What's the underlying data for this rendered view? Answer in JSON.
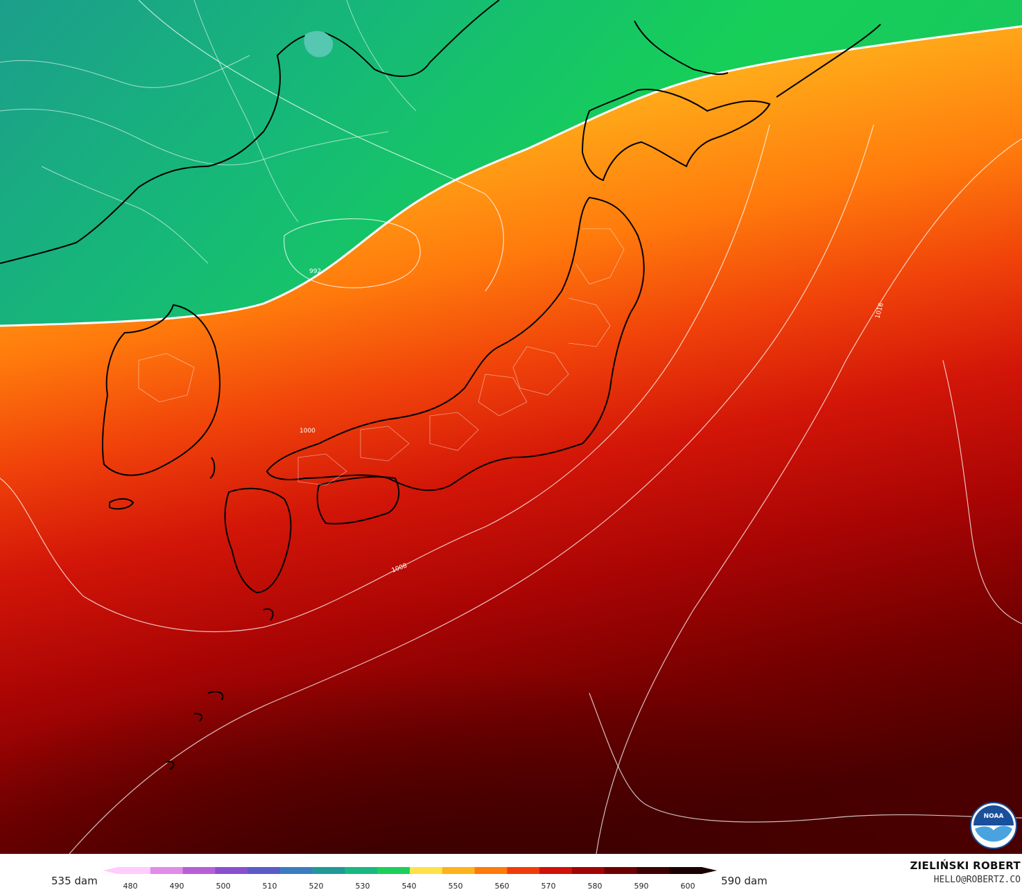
{
  "legend": {
    "left_label": "535 dam",
    "right_label": "590 dam",
    "ticks": [
      "480",
      "490",
      "500",
      "510",
      "520",
      "530",
      "540",
      "550",
      "560",
      "570",
      "580",
      "590",
      "600"
    ],
    "colors": [
      "#ffccff",
      "#e08ce8",
      "#b85fd8",
      "#8a4fd0",
      "#5a5ac8",
      "#3a7cc0",
      "#1f9a98",
      "#19b880",
      "#1ccf5a",
      "#ffe14a",
      "#ffb31a",
      "#ff7a0a",
      "#f03c0a",
      "#cf1108",
      "#a00404",
      "#6c0000",
      "#3d0000",
      "#1a0000"
    ]
  },
  "credits": {
    "author": "ZIELIŃSKI ROBERT",
    "email": "HELLO@ROBERTZ.CO",
    "logo_text": "NOAA"
  },
  "map": {
    "contour_labels": [
      "1000",
      "1008",
      "1016",
      "992"
    ],
    "field_colors": {
      "green_dark": "#14a27e",
      "green": "#17d05a",
      "yellow": "#ffd84a",
      "orange": "#ff9a14",
      "red": "#e21808",
      "dark_red": "#8a0000",
      "maroon": "#4a0000"
    }
  }
}
